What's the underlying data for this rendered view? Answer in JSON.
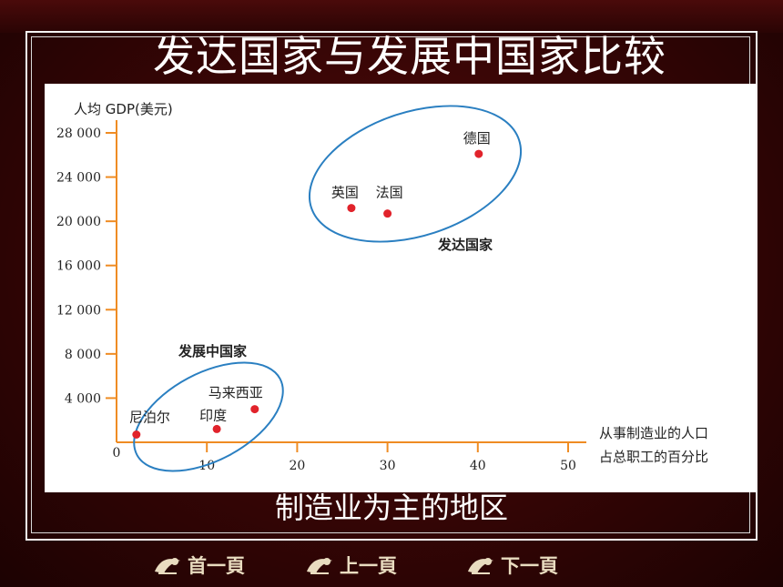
{
  "slide": {
    "title": "发达国家与发展中国家比较",
    "subtitle": "制造业为主的地区"
  },
  "nav": {
    "first": "首一頁",
    "prev": "上一頁",
    "next": "下一頁"
  },
  "colors": {
    "point": "#e1232b",
    "ellipse": "#2a7fc1",
    "axis": "#ef8c23",
    "background": "#3a0606"
  },
  "chart_data": {
    "type": "scatter",
    "ylabel": "人均 GDP(美元)",
    "xlabel": [
      "从事制造业的人口",
      "占总职工的百分比"
    ],
    "xlim": [
      0,
      50
    ],
    "ylim": [
      0,
      28000
    ],
    "x_ticks": [
      0,
      10,
      20,
      30,
      40,
      50
    ],
    "x_tick_labels": [
      "0",
      "10",
      "20",
      "30",
      "40",
      "50"
    ],
    "y_ticks": [
      4000,
      8000,
      12000,
      16000,
      20000,
      24000,
      28000
    ],
    "y_tick_labels": [
      "4 000",
      "8 000",
      "12 000",
      "16 000",
      "20 000",
      "24 000",
      "28 000"
    ],
    "points": [
      {
        "label": "德国",
        "x": 40.1,
        "y": 26100
      },
      {
        "label": "英国",
        "x": 26,
        "y": 21200
      },
      {
        "label": "法国",
        "x": 30,
        "y": 20700
      },
      {
        "label": "马来西亚",
        "x": 15.3,
        "y": 3000
      },
      {
        "label": "印度",
        "x": 11.1,
        "y": 1200
      },
      {
        "label": "尼泊尔",
        "x": 2.2,
        "y": 700
      }
    ],
    "groups": [
      {
        "label": "发达国家"
      },
      {
        "label": "发展中国家"
      }
    ]
  }
}
